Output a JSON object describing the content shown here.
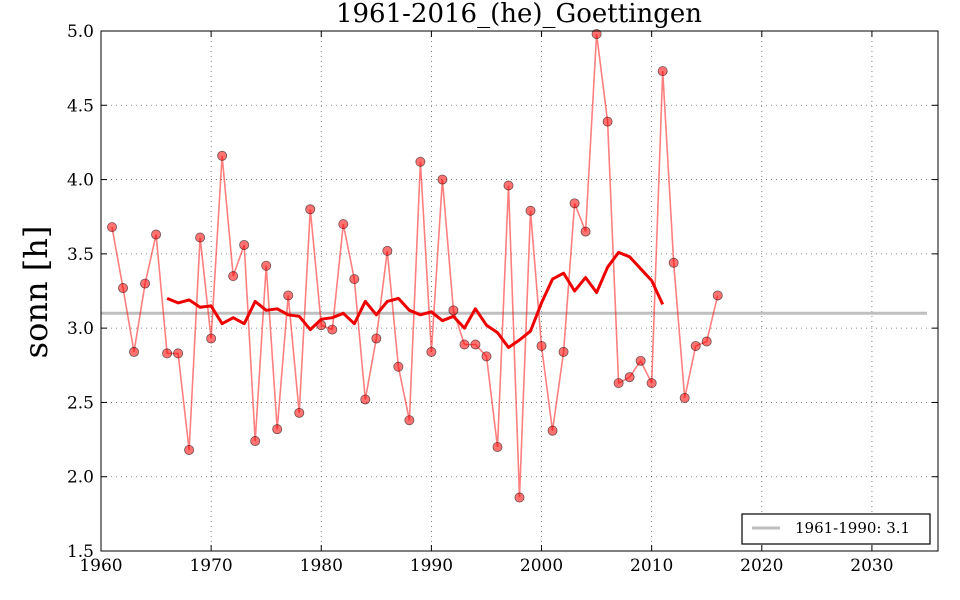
{
  "chart_data": {
    "type": "line",
    "title": "1961-2016_(he)_Goettingen",
    "xlabel": "",
    "ylabel": "sonn [h]",
    "xlim": [
      1960,
      2036
    ],
    "ylim": [
      1.5,
      5.0
    ],
    "xticks": [
      1960,
      1970,
      1980,
      1990,
      2000,
      2010,
      2020,
      2030
    ],
    "yticks": [
      "1.5",
      "2.0",
      "2.5",
      "3.0",
      "3.5",
      "4.0",
      "4.5",
      "5.0"
    ],
    "grid": true,
    "legend_position": "bottom-right",
    "colors": {
      "annual": "#ff0000",
      "smooth": "#ee0000",
      "reference": "#bfbfbf"
    },
    "series": [
      {
        "x": [
          1961,
          1962,
          1963,
          1964,
          1965,
          1966,
          1967,
          1968,
          1969,
          1970,
          1971,
          1972,
          1973,
          1974,
          1975,
          1976,
          1977,
          1978,
          1979,
          1980,
          1981,
          1982,
          1983,
          1984,
          1985,
          1986,
          1987,
          1988,
          1989,
          1990,
          1991,
          1992,
          1993,
          1994,
          1995,
          1996,
          1997,
          1998,
          1999,
          2000,
          2001,
          2002,
          2003,
          2004,
          2005,
          2006,
          2007,
          2008,
          2009,
          2010,
          2011,
          2012,
          2013,
          2014,
          2015,
          2016
        ],
        "values": [
          3.68,
          3.27,
          2.84,
          3.3,
          3.63,
          2.83,
          2.83,
          2.18,
          3.61,
          2.93,
          4.16,
          3.35,
          3.56,
          2.24,
          3.42,
          2.32,
          3.22,
          2.43,
          3.8,
          3.02,
          2.99,
          3.7,
          3.33,
          2.52,
          2.93,
          3.52,
          2.74,
          2.38,
          4.12,
          2.84,
          4.0,
          3.12,
          2.89,
          2.89,
          2.81,
          2.2,
          3.96,
          1.86,
          3.79,
          2.88,
          2.31,
          2.84,
          3.84,
          3.65,
          4.98,
          4.39,
          2.63,
          2.67,
          2.78,
          2.63,
          4.73,
          3.44,
          2.53,
          2.88,
          2.91,
          3.22
        ]
      },
      {
        "x": [
          1966,
          1967,
          1968,
          1969,
          1970,
          1971,
          1972,
          1973,
          1974,
          1975,
          1976,
          1977,
          1978,
          1979,
          1980,
          1981,
          1982,
          1983,
          1984,
          1985,
          1986,
          1987,
          1988,
          1989,
          1990,
          1991,
          1992,
          1993,
          1994,
          1995,
          1996,
          1997,
          1998,
          1999,
          2000,
          2001,
          2002,
          2003,
          2004,
          2005,
          2006,
          2007,
          2008,
          2009,
          2010,
          2011
        ],
        "values": [
          3.2,
          3.17,
          3.19,
          3.14,
          3.15,
          3.03,
          3.07,
          3.03,
          3.18,
          3.12,
          3.13,
          3.09,
          3.08,
          2.99,
          3.06,
          3.07,
          3.1,
          3.03,
          3.18,
          3.09,
          3.18,
          3.2,
          3.12,
          3.09,
          3.11,
          3.05,
          3.08,
          3.0,
          3.13,
          3.02,
          2.97,
          2.87,
          2.92,
          2.98,
          3.17,
          3.33,
          3.37,
          3.25,
          3.34,
          3.24,
          3.41,
          3.51,
          3.48,
          3.4,
          3.32,
          3.16
        ]
      },
      {
        "name": "1961-1990: 3.1",
        "x": [
          1960,
          2035
        ],
        "values": [
          3.1,
          3.1
        ]
      }
    ]
  }
}
